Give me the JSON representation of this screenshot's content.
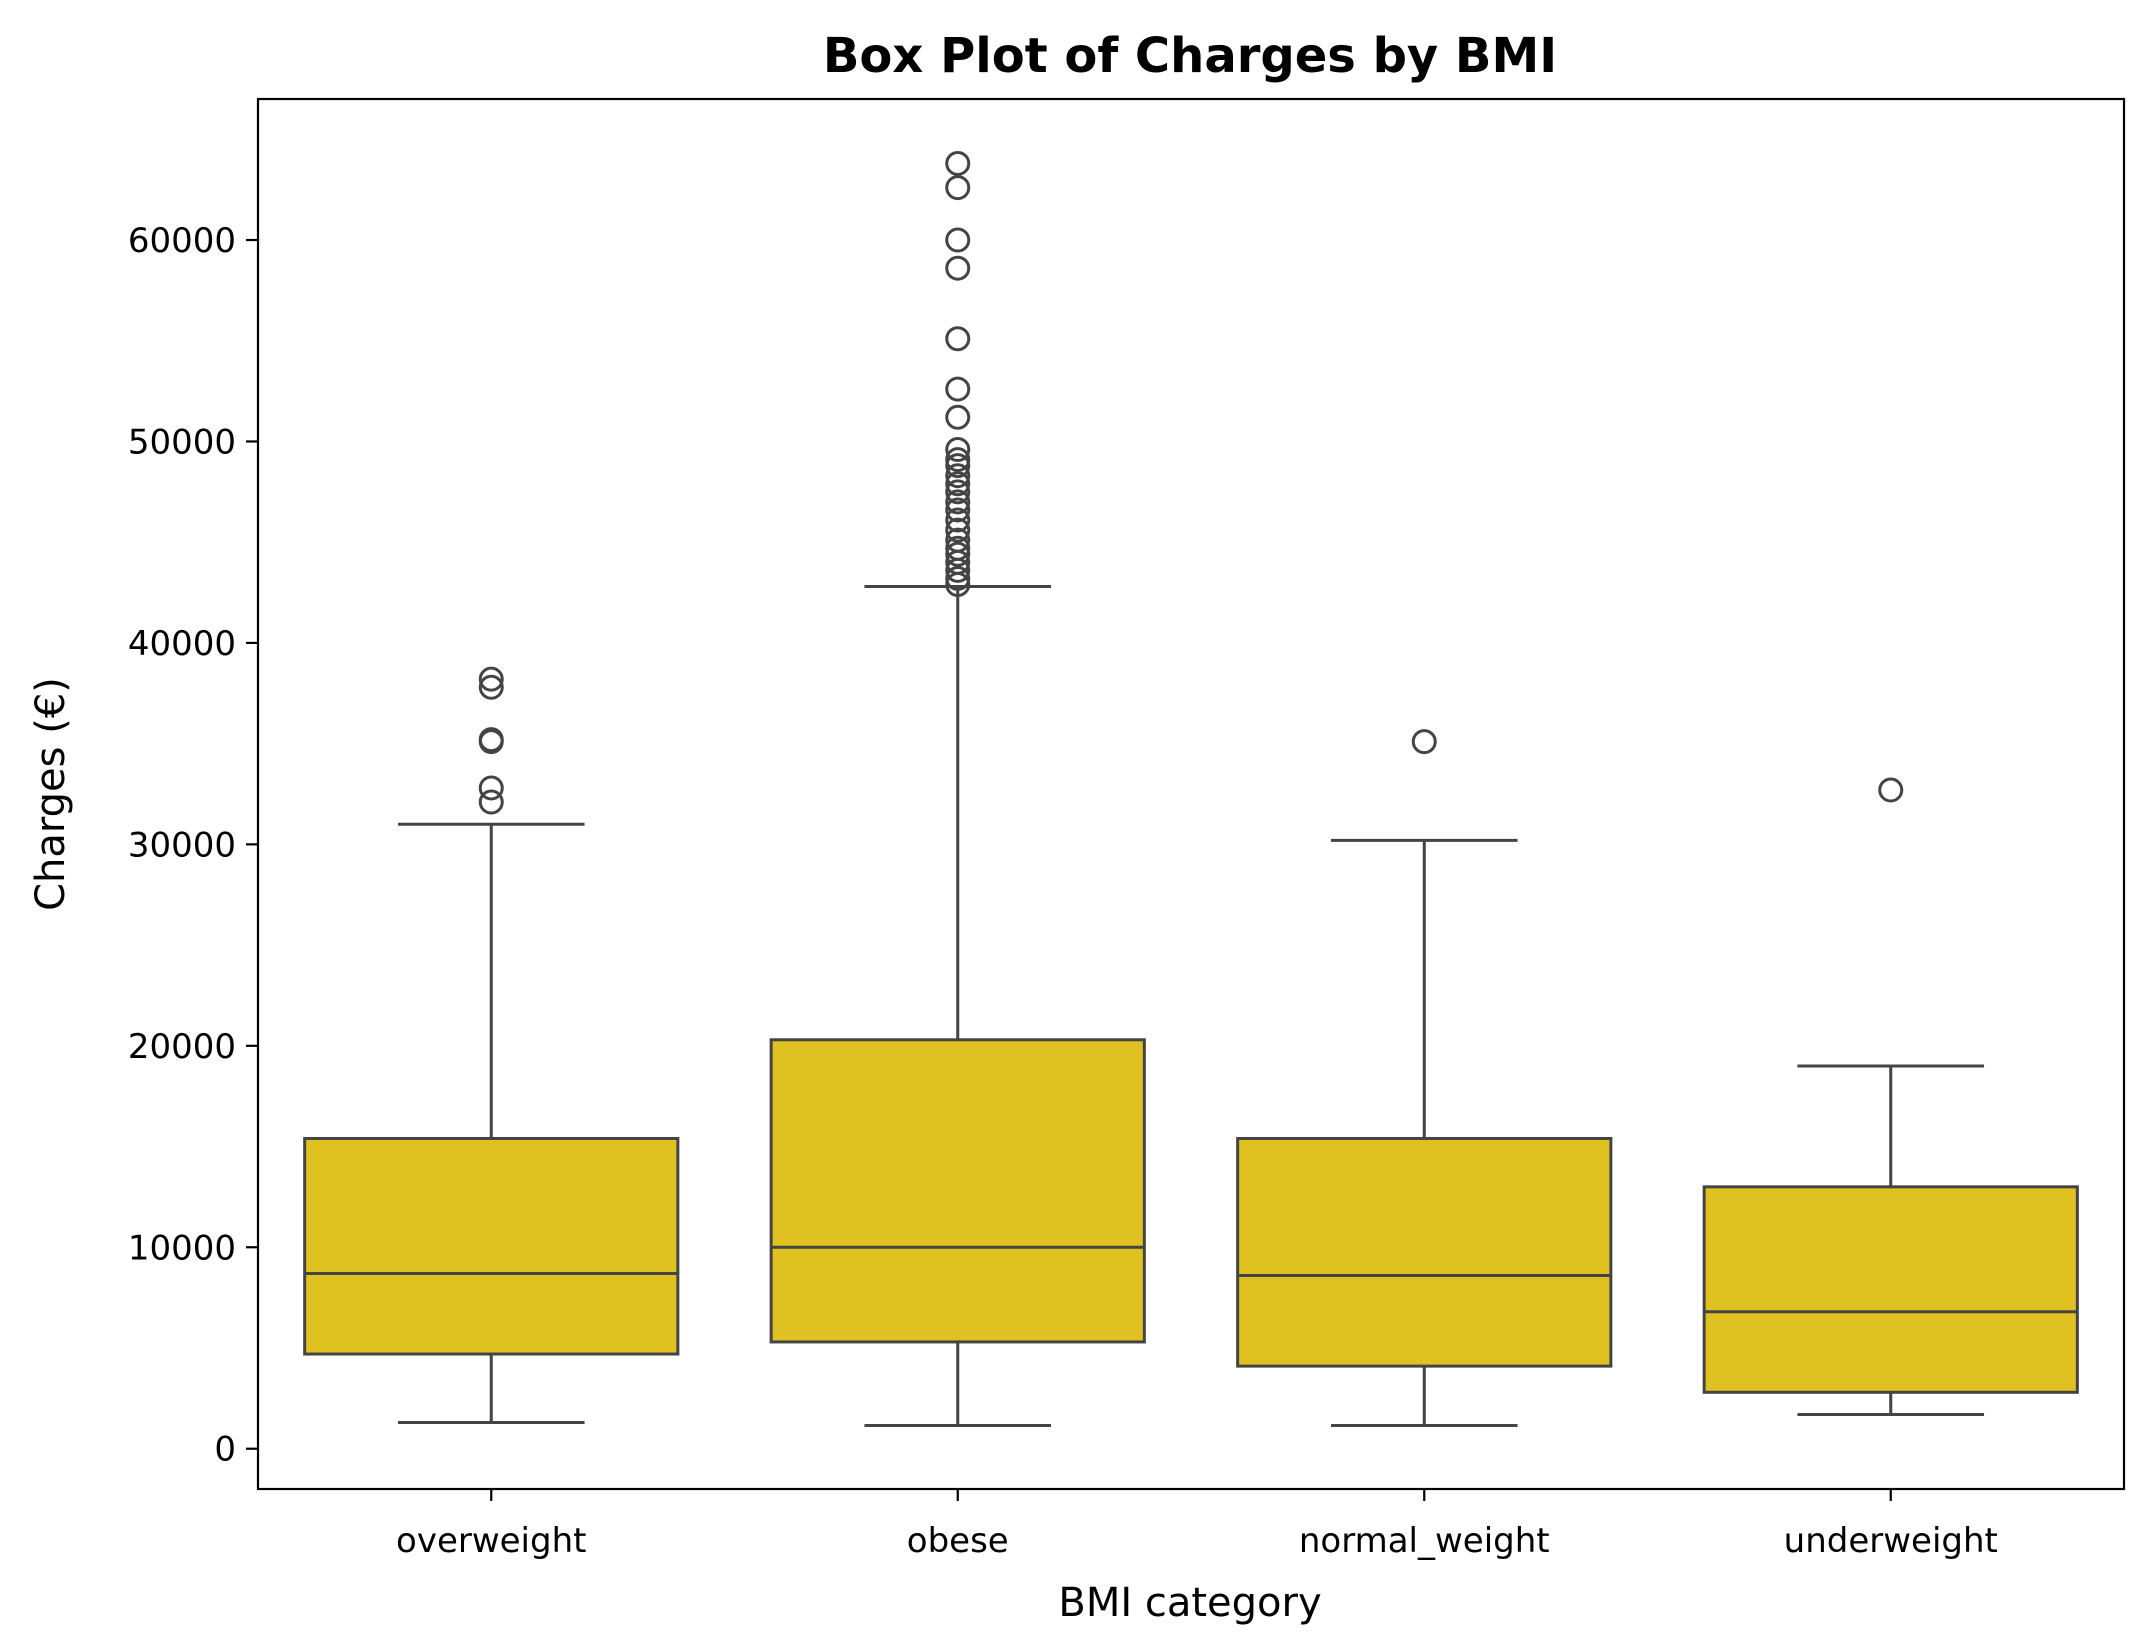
{
  "chart_data": {
    "type": "box",
    "title": "Box Plot of Charges by BMI",
    "xlabel": "BMI category",
    "ylabel": "Charges (€)",
    "ylim": [
      -2000,
      67000
    ],
    "yticks": [
      0,
      10000,
      20000,
      30000,
      40000,
      50000,
      60000
    ],
    "ytick_labels": [
      "0",
      "10000",
      "20000",
      "30000",
      "40000",
      "50000",
      "60000"
    ],
    "grid": false,
    "box_color": "#dfc121",
    "line_color": "#444444",
    "categories": [
      "overweight",
      "obese",
      "normal_weight",
      "underweight"
    ],
    "boxes": [
      {
        "category": "overweight",
        "whisker_low": 1300,
        "q1": 4700,
        "median": 8700,
        "q3": 15400,
        "whisker_high": 31000,
        "outliers": [
          32100,
          32800,
          35100,
          35200,
          37800,
          38200
        ]
      },
      {
        "category": "obese",
        "whisker_low": 1150,
        "q1": 5300,
        "median": 10000,
        "q3": 20300,
        "whisker_high": 42800,
        "outliers": [
          42900,
          43200,
          43600,
          44000,
          44400,
          44700,
          45100,
          45600,
          46100,
          46600,
          47000,
          47500,
          47900,
          48300,
          48800,
          49100,
          49600,
          51200,
          52600,
          55100,
          58600,
          60000,
          62600,
          63800
        ]
      },
      {
        "category": "normal_weight",
        "whisker_low": 1150,
        "q1": 4100,
        "median": 8600,
        "q3": 15400,
        "whisker_high": 30200,
        "outliers": [
          35100
        ]
      },
      {
        "category": "underweight",
        "whisker_low": 1700,
        "q1": 2800,
        "median": 6800,
        "q3": 13000,
        "whisker_high": 19000,
        "outliers": [
          32700
        ]
      }
    ]
  }
}
